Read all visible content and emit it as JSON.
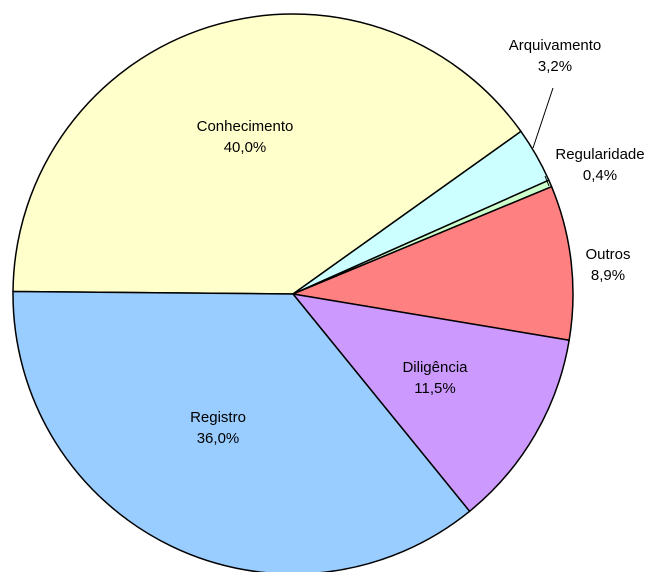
{
  "chart_data": {
    "type": "pie",
    "categories": [
      "Conhecimento",
      "Arquivamento",
      "Regularidade",
      "Outros",
      "Diligência",
      "Registro"
    ],
    "values": [
      40.0,
      3.2,
      0.4,
      8.9,
      11.5,
      36.0
    ],
    "value_labels": [
      "40,0%",
      "3,2%",
      "0,4%",
      "8,9%",
      "11,5%",
      "36,0%"
    ],
    "colors": [
      "#ffffcc",
      "#ccffff",
      "#ccffcc",
      "#ff8080",
      "#cc99ff",
      "#99ccff"
    ]
  }
}
